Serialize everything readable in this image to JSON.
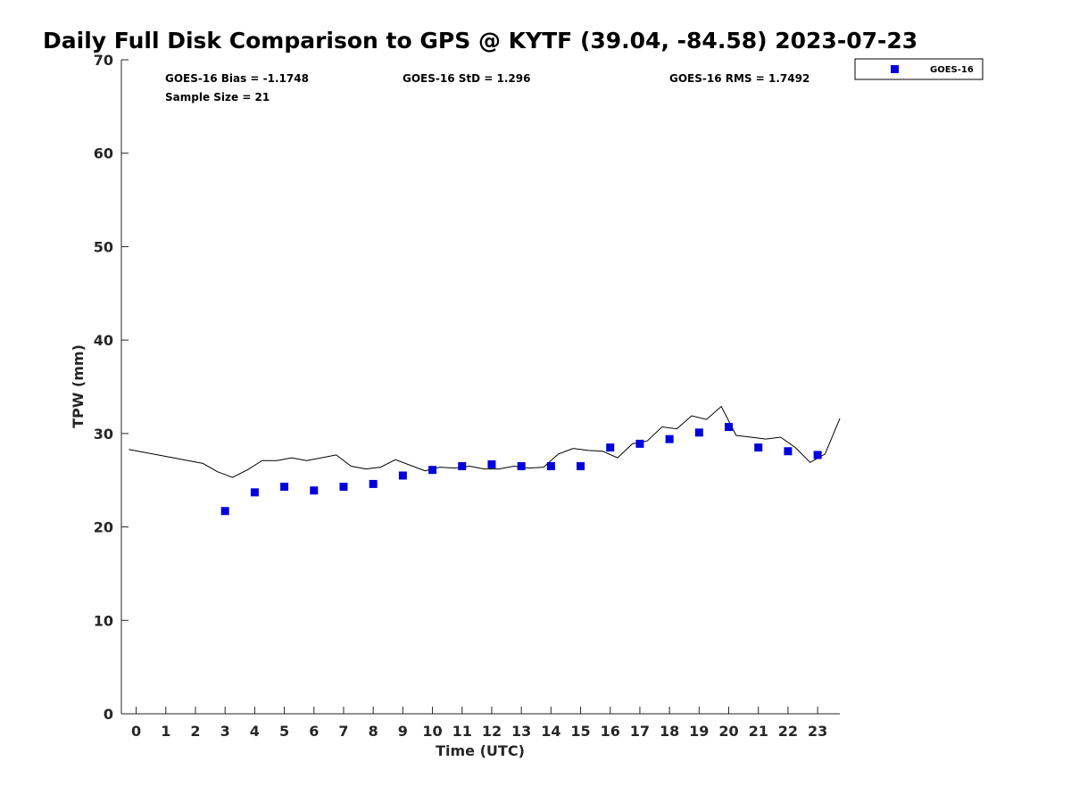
{
  "chart_data": {
    "type": "scatter",
    "title": "Daily Full Disk Comparison to GPS @ KYTF (39.04, -84.58) 2023-07-23",
    "xlabel": "Time (UTC)",
    "ylabel": "TPW (mm)",
    "xlim": [
      -0.5,
      23.75
    ],
    "ylim": [
      0,
      70
    ],
    "xticks": [
      0,
      1,
      2,
      3,
      4,
      5,
      6,
      7,
      8,
      9,
      10,
      11,
      12,
      13,
      14,
      15,
      16,
      17,
      18,
      19,
      20,
      21,
      22,
      23
    ],
    "xtick_labels": [
      "0",
      "1",
      "2",
      "3",
      "4",
      "5",
      "6",
      "7",
      "8",
      "9",
      "10",
      "11",
      "12",
      "13",
      "14",
      "15",
      "16",
      "17",
      "18",
      "19",
      "20",
      "21",
      "22",
      "23"
    ],
    "yticks": [
      0,
      10,
      20,
      30,
      40,
      50,
      60,
      70
    ],
    "ytick_labels": [
      "0",
      "10",
      "20",
      "30",
      "40",
      "50",
      "60",
      "70"
    ],
    "grid": false,
    "legend_position": "top-right",
    "stats": {
      "bias": "GOES-16 Bias = -1.1748",
      "std": "GOES-16 StD = 1.296",
      "rms": "GOES-16 RMS = 1.7492",
      "sample_size": "Sample Size = 21"
    },
    "series": [
      {
        "name": "GOES-16",
        "kind": "scatter",
        "color": "#0000dd",
        "x": [
          3,
          4,
          5,
          6,
          7,
          8,
          9,
          10,
          11,
          12,
          13,
          14,
          15,
          16,
          17,
          18,
          19,
          20,
          21,
          22,
          23
        ],
        "y": [
          21.7,
          23.7,
          24.3,
          23.9,
          24.3,
          24.6,
          25.5,
          26.1,
          26.5,
          26.7,
          26.5,
          26.5,
          26.5,
          28.5,
          28.9,
          29.4,
          30.1,
          30.7,
          28.5,
          28.1,
          27.7
        ]
      },
      {
        "kind": "line",
        "color": "#000000",
        "x": [
          -0.25,
          2.25,
          2.75,
          3.25,
          3.75,
          4.25,
          4.75,
          5.25,
          5.75,
          6.25,
          6.75,
          7.25,
          7.75,
          8.25,
          8.75,
          9.25,
          9.75,
          10.25,
          10.75,
          11.25,
          11.75,
          12.25,
          12.75,
          13.25,
          13.75,
          14.25,
          14.75,
          15.25,
          15.75,
          16.25,
          16.75,
          17.25,
          17.75,
          18.25,
          18.75,
          19.25,
          19.75,
          20.25,
          20.75,
          21.25,
          21.75,
          22.25,
          22.75,
          23.25,
          23.75
        ],
        "y": [
          28.3,
          26.8,
          25.9,
          25.3,
          26.1,
          27.1,
          27.1,
          27.4,
          27.1,
          27.4,
          27.7,
          26.5,
          26.2,
          26.4,
          27.2,
          26.6,
          26.0,
          26.4,
          26.3,
          26.5,
          26.2,
          26.2,
          26.5,
          26.3,
          26.4,
          27.8,
          28.4,
          28.2,
          28.1,
          27.4,
          28.9,
          29.2,
          30.7,
          30.5,
          31.9,
          31.5,
          32.9,
          29.8,
          29.6,
          29.4,
          29.6,
          28.5,
          26.9,
          27.8,
          31.6
        ]
      }
    ]
  }
}
